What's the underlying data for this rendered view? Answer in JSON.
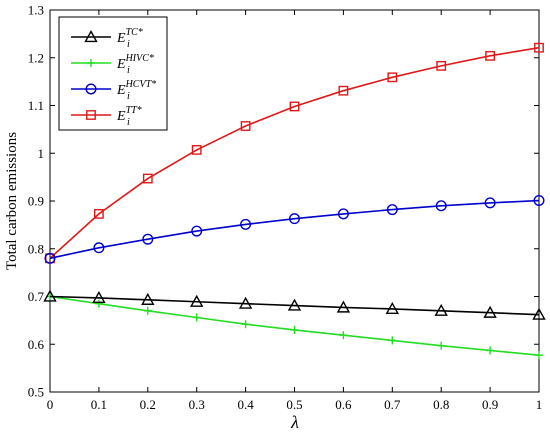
{
  "chart_data": {
    "type": "line",
    "title": "",
    "xlabel": "λ",
    "ylabel": "Total carbon emissions",
    "xlim": [
      0,
      1
    ],
    "ylim": [
      0.5,
      1.3
    ],
    "x": [
      0,
      0.1,
      0.2,
      0.3,
      0.4,
      0.5,
      0.6,
      0.7,
      0.8,
      0.9,
      1.0
    ],
    "xticks": [
      "0",
      "0.1",
      "0.2",
      "0.3",
      "0.4",
      "0.5",
      "0.6",
      "0.7",
      "0.8",
      "0.9",
      "1"
    ],
    "yticks": [
      "0.5",
      "0.6",
      "0.7",
      "0.8",
      "0.9",
      "1",
      "1.1",
      "1.2",
      "1.3"
    ],
    "grid": false,
    "legend_position": "top-left",
    "series": [
      {
        "name": "E_i^{TC*}",
        "legend_base": "E",
        "legend_sup": "TC*",
        "legend_sub": "i",
        "color": "#000000",
        "marker": "triangle",
        "values": [
          0.7,
          0.697,
          0.693,
          0.689,
          0.685,
          0.681,
          0.677,
          0.674,
          0.67,
          0.666,
          0.662
        ]
      },
      {
        "name": "E_i^{HIVC*}",
        "legend_base": "E",
        "legend_sup": "HIVC*",
        "legend_sub": "i",
        "color": "#22dd22",
        "marker": "plus",
        "values": [
          0.7,
          0.685,
          0.67,
          0.656,
          0.642,
          0.63,
          0.619,
          0.608,
          0.597,
          0.587,
          0.577
        ]
      },
      {
        "name": "E_i^{HCVT*}",
        "legend_base": "E",
        "legend_sup": "HCVT*",
        "legend_sub": "i",
        "color": "#0000cc",
        "marker": "circle",
        "values": [
          0.78,
          0.802,
          0.82,
          0.837,
          0.851,
          0.863,
          0.873,
          0.882,
          0.89,
          0.896,
          0.901
        ]
      },
      {
        "name": "E_i^{TT*}",
        "legend_base": "E",
        "legend_sup": "TT*",
        "legend_sub": "i",
        "color": "#e01818",
        "marker": "square",
        "values": [
          0.78,
          0.873,
          0.947,
          1.007,
          1.057,
          1.098,
          1.131,
          1.159,
          1.183,
          1.204,
          1.221
        ]
      }
    ]
  }
}
